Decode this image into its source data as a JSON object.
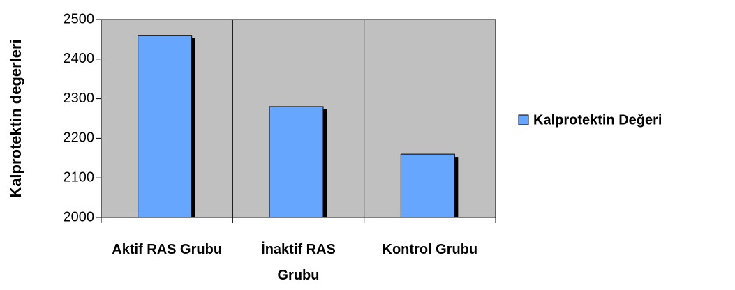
{
  "chart_data": {
    "type": "bar",
    "ylabel": "Kalprotektin degerleri",
    "categories": [
      "Aktif RAS Grubu",
      "İnaktif RAS Grubu",
      "Kontrol Grubu"
    ],
    "series": [
      {
        "name": "Kalprotektin Değeri",
        "color": "#66a6ff",
        "values": [
          2460,
          2280,
          2160
        ]
      }
    ],
    "ylim": [
      2000,
      2500
    ],
    "yticks": [
      2000,
      2100,
      2200,
      2300,
      2400,
      2500
    ],
    "grid": false,
    "legend": "right"
  }
}
